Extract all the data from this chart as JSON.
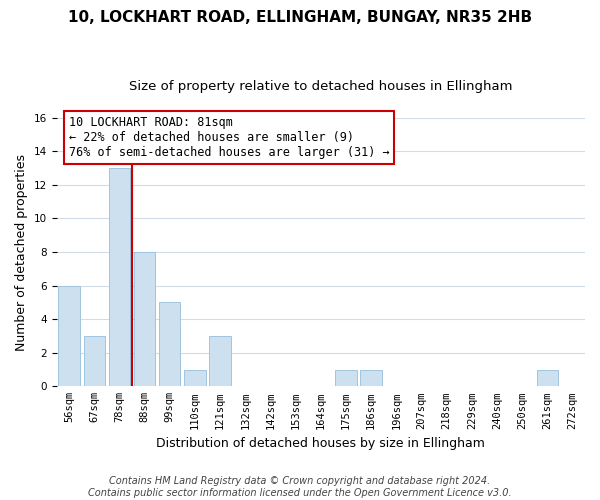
{
  "title": "10, LOCKHART ROAD, ELLINGHAM, BUNGAY, NR35 2HB",
  "subtitle": "Size of property relative to detached houses in Ellingham",
  "xlabel": "Distribution of detached houses by size in Ellingham",
  "ylabel": "Number of detached properties",
  "bin_labels": [
    "56sqm",
    "67sqm",
    "78sqm",
    "88sqm",
    "99sqm",
    "110sqm",
    "121sqm",
    "132sqm",
    "142sqm",
    "153sqm",
    "164sqm",
    "175sqm",
    "186sqm",
    "196sqm",
    "207sqm",
    "218sqm",
    "229sqm",
    "240sqm",
    "250sqm",
    "261sqm",
    "272sqm"
  ],
  "bar_heights": [
    6,
    3,
    13,
    8,
    5,
    1,
    3,
    0,
    0,
    0,
    0,
    1,
    1,
    0,
    0,
    0,
    0,
    0,
    0,
    1,
    0
  ],
  "bar_color": "#cce0f0",
  "bar_edge_color": "#a0c4e0",
  "vline_x": 2.5,
  "vline_color": "#cc0000",
  "annotation_line1": "10 LOCKHART ROAD: 81sqm",
  "annotation_line2": "← 22% of detached houses are smaller (9)",
  "annotation_line3": "76% of semi-detached houses are larger (31) →",
  "annotation_box_color": "#ffffff",
  "annotation_box_edge_color": "#cc0000",
  "ylim": [
    0,
    16
  ],
  "yticks": [
    0,
    2,
    4,
    6,
    8,
    10,
    12,
    14,
    16
  ],
  "footer_text": "Contains HM Land Registry data © Crown copyright and database right 2024.\nContains public sector information licensed under the Open Government Licence v3.0.",
  "background_color": "#ffffff",
  "grid_color": "#d0dce8",
  "title_fontsize": 11,
  "subtitle_fontsize": 9.5,
  "axis_label_fontsize": 9,
  "tick_fontsize": 7.5,
  "annotation_fontsize": 8.5,
  "footer_fontsize": 7
}
